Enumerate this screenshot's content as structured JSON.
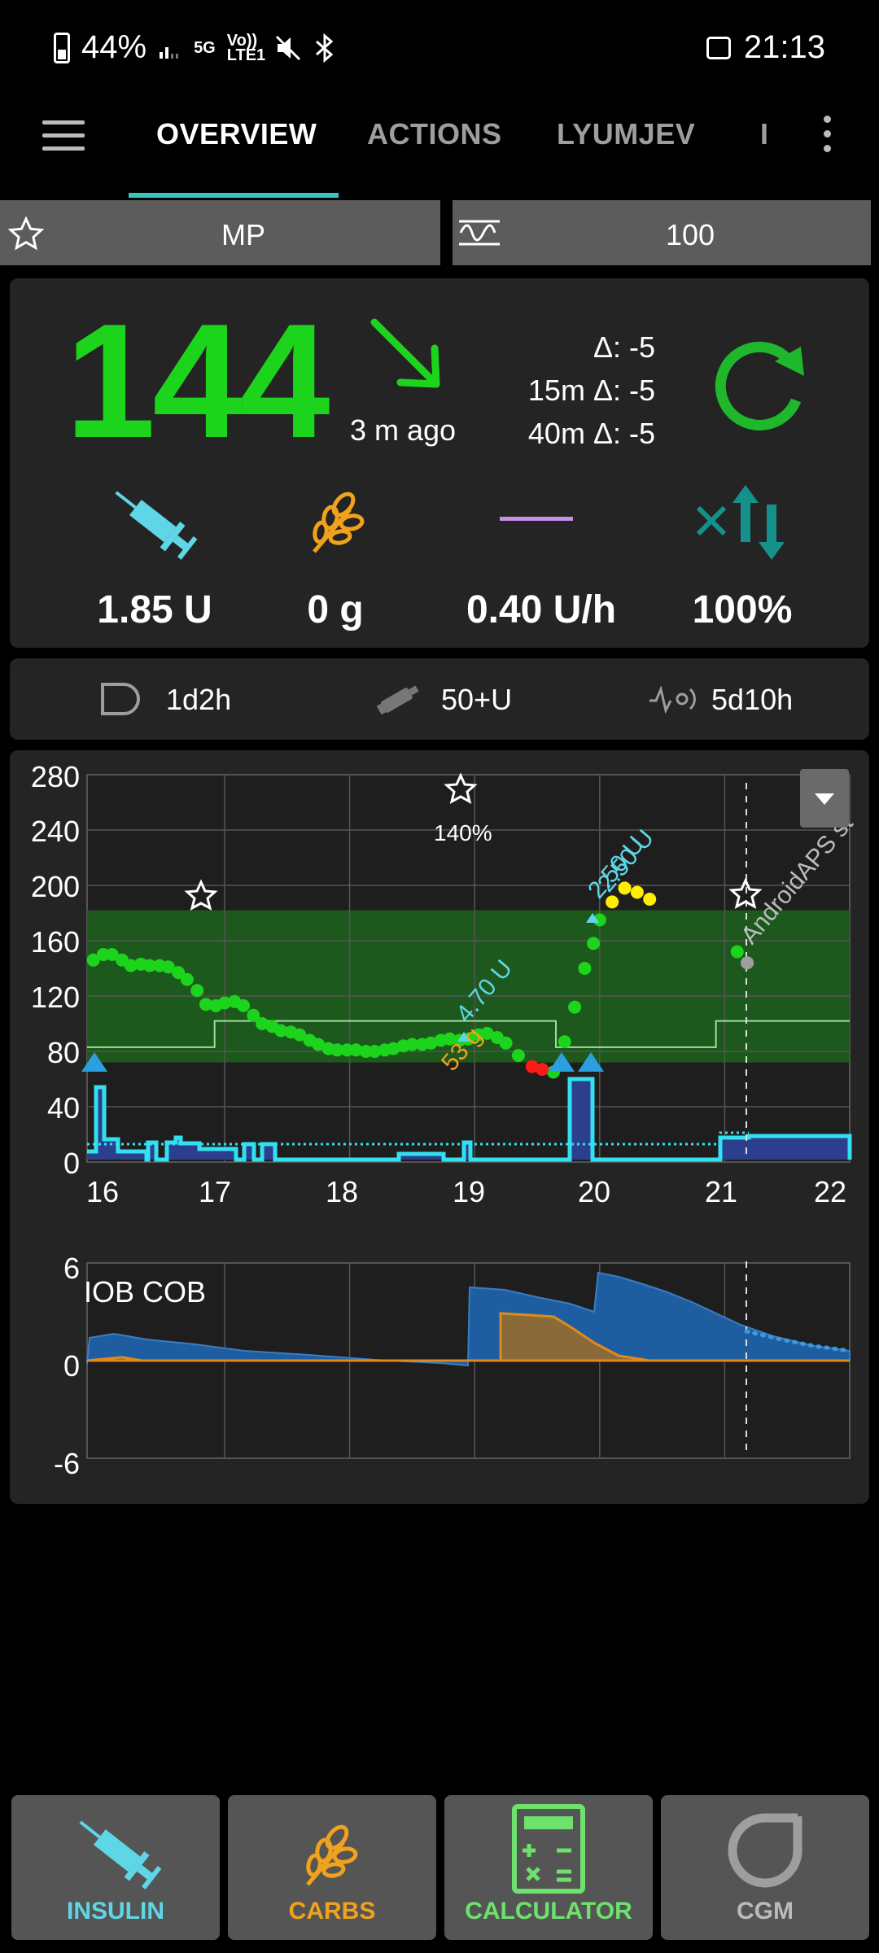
{
  "status_bar": {
    "battery": "44%",
    "network_5g": "5G",
    "volte": "Vo)) LTE1",
    "time": "21:13"
  },
  "app_bar": {
    "tabs": [
      {
        "label": "OVERVIEW"
      },
      {
        "label": "ACTIONS"
      },
      {
        "label": "LYUMJEV"
      },
      {
        "label": "I"
      }
    ]
  },
  "profile": {
    "profile_name": "MP",
    "target_value": "100"
  },
  "glucose": {
    "value": "144",
    "ago": "3 m ago",
    "delta": "Δ: -5",
    "delta_15m": "15m Δ: -5",
    "delta_40m": "40m Δ: -5",
    "color": "#1cd41c"
  },
  "stats": {
    "iob": "1.85 U",
    "cob": "0 g",
    "basal": "0.40 U/h",
    "autosens": "100%"
  },
  "sensor_row": {
    "cannula_age": "1d2h",
    "reservoir": "50+U",
    "sensor_age": "5d10h"
  },
  "chart_data": [
    {
      "type": "scatter",
      "y_ticks": [
        "280",
        "240",
        "200",
        "160",
        "120",
        "80",
        "40",
        "0"
      ],
      "x_ticks": [
        "16",
        "17",
        "18",
        "19",
        "20",
        "21",
        "22"
      ],
      "ylim": [
        0,
        280
      ],
      "xlim": [
        15.9,
        22
      ],
      "target_range": [
        72,
        182
      ],
      "profile_annotation": "140%",
      "treatments": [
        "4.70 U",
        "53 g",
        "2.50 U",
        "2.50 U"
      ],
      "watermark": "AndroidAPS st",
      "series": [
        {
          "x": [
            15.95,
            16.03,
            16.1,
            16.18,
            16.25,
            16.33,
            16.4,
            16.48,
            16.55,
            16.63,
            16.7,
            16.78,
            16.85,
            16.93,
            17.0,
            17.08,
            17.15,
            17.23,
            17.3,
            17.38,
            17.45,
            17.53,
            17.6,
            17.68,
            17.75,
            17.83,
            17.9,
            17.98,
            18.05,
            18.13,
            18.2,
            18.28,
            18.35,
            18.43,
            18.5,
            18.58,
            18.65,
            18.73,
            18.8,
            18.88,
            18.95,
            19.03,
            19.1,
            19.18,
            19.25,
            19.35,
            19.63,
            19.72,
            19.8,
            19.88,
            19.95,
            20.0,
            21.1,
            21.18
          ],
          "y": [
            146,
            150,
            150,
            146,
            142,
            143,
            142,
            142,
            141,
            137,
            132,
            124,
            114,
            113,
            115,
            116,
            113,
            106,
            100,
            98,
            95,
            94,
            92,
            88,
            85,
            82,
            81,
            81,
            81,
            80,
            80,
            81,
            82,
            84,
            85,
            85,
            86,
            88,
            89,
            88,
            89,
            92,
            93,
            90,
            86,
            77,
            65,
            87,
            112,
            140,
            158,
            175,
            152,
            144
          ],
          "color": "#1cd41c"
        },
        {
          "x": [
            20.1,
            20.2,
            20.3,
            20.4
          ],
          "y": [
            188,
            198,
            195,
            190
          ],
          "color": "#ffee00"
        },
        {
          "x": [
            19.46,
            19.54
          ],
          "y": [
            69,
            67
          ],
          "color": "#ff1a1a"
        }
      ]
    },
    {
      "type": "area",
      "y_ticks": [
        "6",
        "0",
        "-6"
      ],
      "ylim": [
        -6,
        6
      ],
      "title": "IOB COB",
      "series": [
        {
          "name": "IOB",
          "color": "#1e5ea0"
        },
        {
          "name": "COB",
          "color": "#e08a1c"
        }
      ]
    }
  ],
  "bottom_buttons": {
    "insulin": "INSULIN",
    "carbs": "CARBS",
    "calculator": "CALCULATOR",
    "cgm": "CGM"
  }
}
